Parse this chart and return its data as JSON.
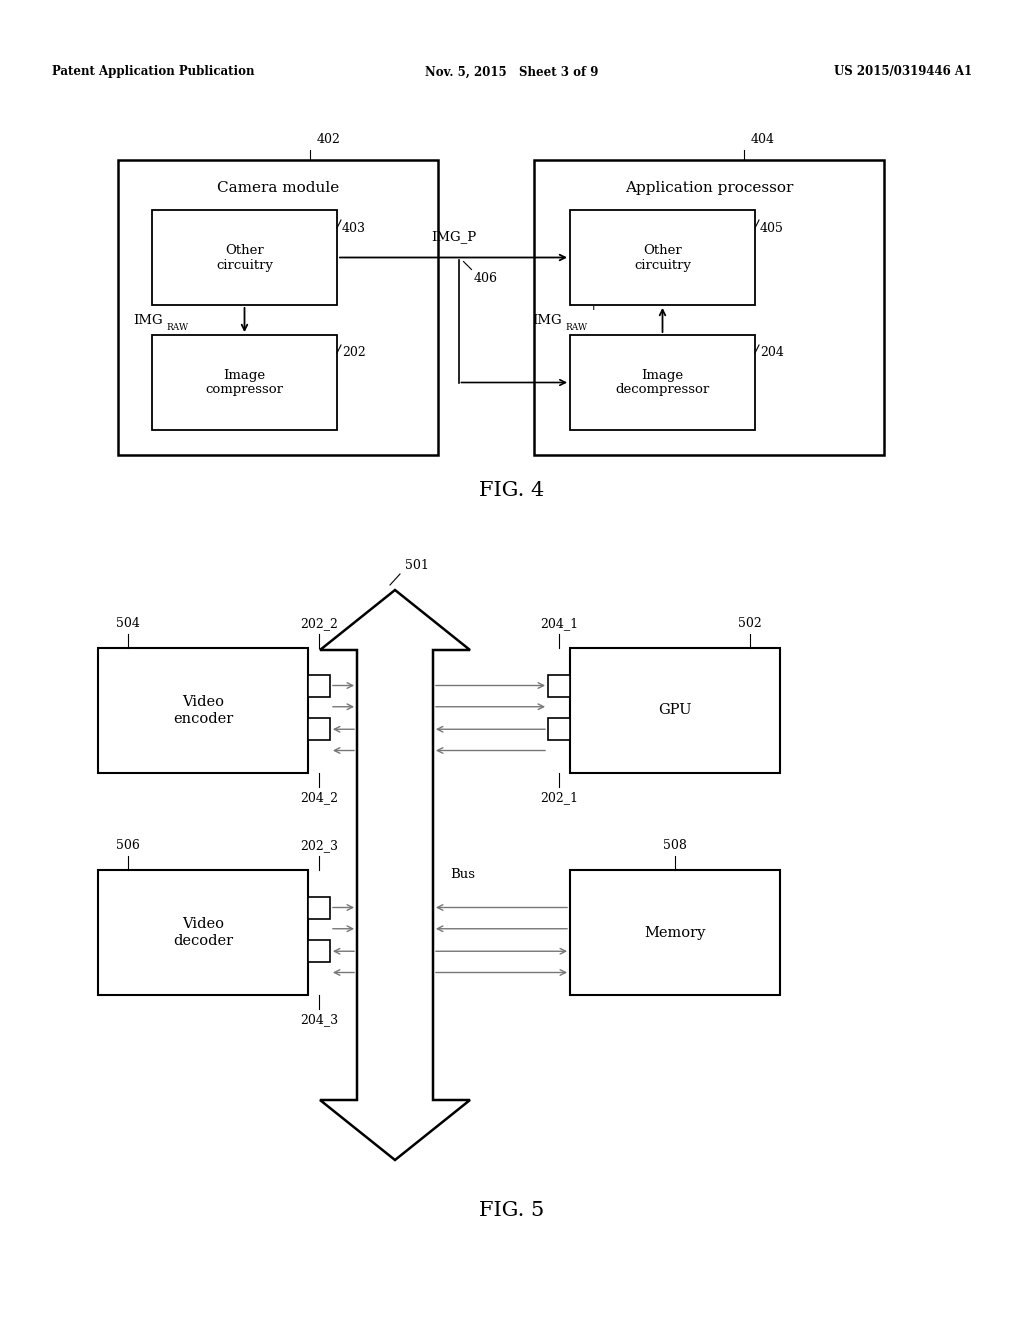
{
  "bg_color": "#ffffff",
  "lc": "#000000",
  "header": {
    "left": "Patent Application Publication",
    "center": "Nov. 5, 2015   Sheet 3 of 9",
    "right": "US 2015/0319446 A1"
  }
}
